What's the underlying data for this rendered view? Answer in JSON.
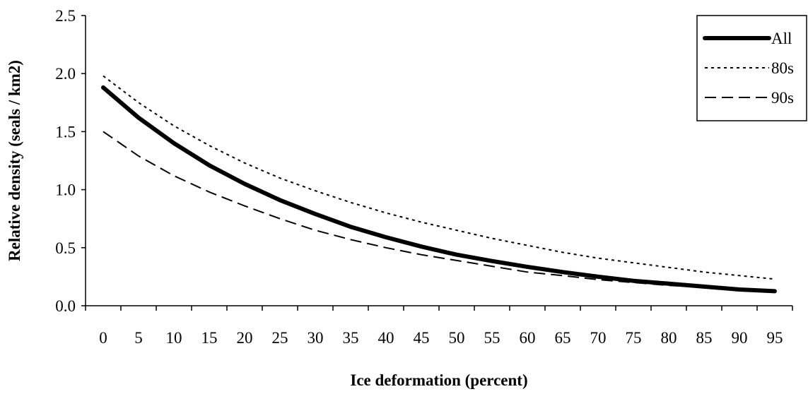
{
  "chart_data": {
    "type": "line",
    "title": "",
    "xlabel": "Ice deformation (percent)",
    "ylabel": "Relative density (seals / km2)",
    "categories": [
      "0",
      "5",
      "10",
      "15",
      "20",
      "25",
      "30",
      "35",
      "40",
      "45",
      "50",
      "55",
      "60",
      "65",
      "70",
      "75",
      "80",
      "85",
      "90",
      "95"
    ],
    "y_ticks": [
      "0.0",
      "0.5",
      "1.0",
      "1.5",
      "2.0",
      "2.5"
    ],
    "ylim": [
      0,
      2.5
    ],
    "grid": false,
    "legend_position": "top-right",
    "series": [
      {
        "name": "All",
        "style": "solid-thick",
        "color": "#000000",
        "values": [
          1.88,
          1.62,
          1.4,
          1.21,
          1.05,
          0.91,
          0.79,
          0.68,
          0.59,
          0.51,
          0.44,
          0.385,
          0.335,
          0.29,
          0.25,
          0.215,
          0.19,
          0.165,
          0.14,
          0.125
        ]
      },
      {
        "name": "80s",
        "style": "dotted",
        "color": "#000000",
        "values": [
          1.98,
          1.75,
          1.55,
          1.38,
          1.23,
          1.1,
          0.99,
          0.89,
          0.8,
          0.72,
          0.65,
          0.58,
          0.52,
          0.46,
          0.41,
          0.37,
          0.33,
          0.29,
          0.26,
          0.23
        ]
      },
      {
        "name": "90s",
        "style": "dashed",
        "color": "#000000",
        "values": [
          1.5,
          1.29,
          1.12,
          0.98,
          0.86,
          0.75,
          0.65,
          0.57,
          0.5,
          0.44,
          0.39,
          0.34,
          0.29,
          0.26,
          0.225,
          0.2,
          0.175,
          0.16,
          0.14,
          0.12
        ]
      }
    ]
  }
}
